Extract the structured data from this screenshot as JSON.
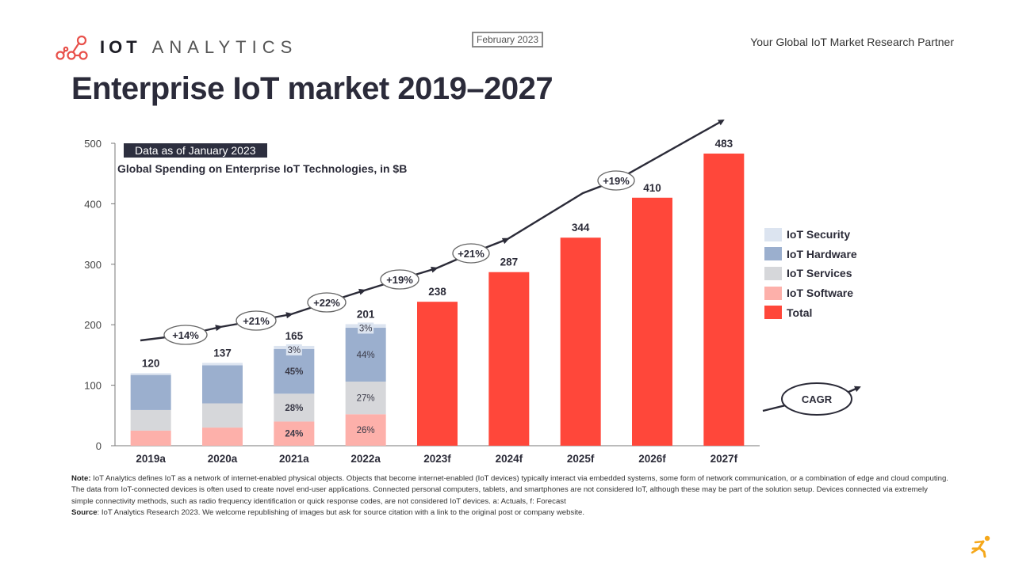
{
  "header": {
    "logo": {
      "icon": "network-nodes-icon",
      "brand_bold": "IOT",
      "brand_light": "ANALYTICS"
    },
    "date_badge": "February 2023",
    "tagline": "Your Global IoT Market Research Partner",
    "title": "Enterprise IoT market 2019–2027"
  },
  "chart_data": {
    "type": "bar",
    "stacked": true,
    "title": "Global Spending on Enterprise IoT Technologies, in $B",
    "data_note": "Data as of January 2023",
    "xlabel": "",
    "ylabel": "",
    "ylim": [
      0,
      500
    ],
    "yticks": [
      0,
      100,
      200,
      300,
      400,
      500
    ],
    "grid": false,
    "legend_position": "right",
    "categories": [
      "2019a",
      "2020a",
      "2021a",
      "2022a",
      "2023f",
      "2024f",
      "2025f",
      "2026f",
      "2027f"
    ],
    "totals": [
      120,
      137,
      165,
      201,
      238,
      287,
      344,
      410,
      483
    ],
    "series": [
      {
        "name": "IoT Software",
        "color": "#fdb0aa",
        "values": [
          25,
          30,
          40,
          52,
          null,
          null,
          null,
          null,
          null
        ]
      },
      {
        "name": "IoT Services",
        "color": "#d6d7da",
        "values": [
          34,
          40,
          46,
          54,
          null,
          null,
          null,
          null,
          null
        ]
      },
      {
        "name": "IoT Hardware",
        "color": "#9bafce",
        "values": [
          58,
          63,
          74,
          89,
          null,
          null,
          null,
          null,
          null
        ]
      },
      {
        "name": "IoT Security",
        "color": "#dce4f0",
        "values": [
          3,
          4,
          5,
          6,
          null,
          null,
          null,
          null,
          null
        ]
      },
      {
        "name": "Total",
        "color": "#ff473a",
        "values": [
          null,
          null,
          null,
          null,
          238,
          287,
          344,
          410,
          483
        ]
      }
    ],
    "segment_labels": [
      {
        "category": "2021a",
        "series": "IoT Security",
        "label": "3%"
      },
      {
        "category": "2021a",
        "series": "IoT Hardware",
        "label": "45%"
      },
      {
        "category": "2021a",
        "series": "IoT Services",
        "label": "28%"
      },
      {
        "category": "2021a",
        "series": "IoT Software",
        "label": "24%"
      },
      {
        "category": "2022a",
        "series": "IoT Security",
        "label": "3%"
      },
      {
        "category": "2022a",
        "series": "IoT Hardware",
        "label": "44%"
      },
      {
        "category": "2022a",
        "series": "IoT Services",
        "label": "27%"
      },
      {
        "category": "2022a",
        "series": "IoT Software",
        "label": "26%"
      }
    ],
    "growth_annotations": [
      {
        "from": "2019a",
        "to": "2020a",
        "label": "+14%"
      },
      {
        "from": "2020a",
        "to": "2021a",
        "label": "+21%"
      },
      {
        "from": "2021a",
        "to": "2022a",
        "label": "+22%"
      },
      {
        "from": "2022a",
        "to": "2023f",
        "label": "+19%"
      },
      {
        "from": "2023f",
        "to": "2024f",
        "label": "+21%"
      },
      {
        "from": "2024f",
        "to": "2027f",
        "label": "+19%"
      }
    ],
    "cagr_legend_label": "CAGR",
    "legend": [
      "IoT Security",
      "IoT Hardware",
      "IoT Services",
      "IoT Software",
      "Total"
    ]
  },
  "legend_colors": {
    "IoT Security": "#dce4f0",
    "IoT Hardware": "#9bafce",
    "IoT Services": "#d6d7da",
    "IoT Software": "#fdb0aa",
    "Total": "#ff473a"
  },
  "footnote": {
    "note_label": "Note:",
    "note_text": " IoT Analytics defines IoT as a network of internet-enabled physical objects. Objects that become internet-enabled (IoT devices) typically interact via embedded systems, some form of network communication, or a combination of edge and cloud computing. The data from IoT-connected devices is often used to create novel end-user applications. Connected personal computers, tablets, and smartphones are not considered IoT, although these may be part of the solution setup. Devices connected via extremely simple connectivity methods, such as radio frequency identification or quick response codes, are not considered IoT devices. a: Actuals, f: Forecast",
    "source_label": "Source",
    "source_text": ": IoT Analytics Research 2023. We welcome republishing of images but ask for source citation with a link to the original post or company website."
  },
  "corner_icon": "runner-icon"
}
